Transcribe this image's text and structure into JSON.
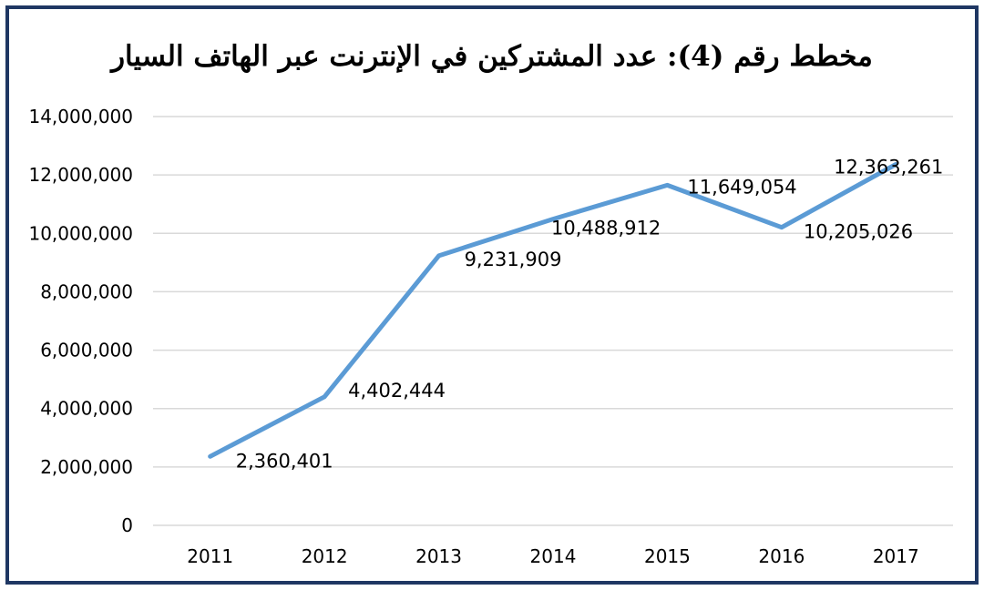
{
  "chart_data": {
    "type": "line",
    "title": "مخطط رقم (4): عدد المشتركين في الإنترنت عبر الهاتف السيار",
    "xlabel": "",
    "ylabel": "",
    "categories": [
      "2011",
      "2012",
      "2013",
      "2014",
      "2015",
      "2016",
      "2017"
    ],
    "series": [
      {
        "values": [
          2360401,
          4402444,
          9231909,
          10488912,
          11649054,
          10205026,
          12363261
        ],
        "data_labels": [
          "2,360,401",
          "4,402,444",
          "9,231,909",
          "10,488,912",
          "11,649,054",
          "10,205,026",
          "12,363,261"
        ],
        "color": "#5b9bd5"
      }
    ],
    "ylim": [
      0,
      14000000
    ],
    "yticks": [
      0,
      2000000,
      4000000,
      6000000,
      8000000,
      10000000,
      12000000,
      14000000
    ],
    "ytick_labels": [
      "0",
      "2,000,000",
      "4,000,000",
      "6,000,000",
      "8,000,000",
      "10,000,000",
      "12,000,000",
      "14,000,000"
    ],
    "grid": true,
    "legend": "none"
  },
  "colors": {
    "frame": "#1f3763",
    "grid": "#d9d9d9",
    "line": "#5b9bd5"
  }
}
